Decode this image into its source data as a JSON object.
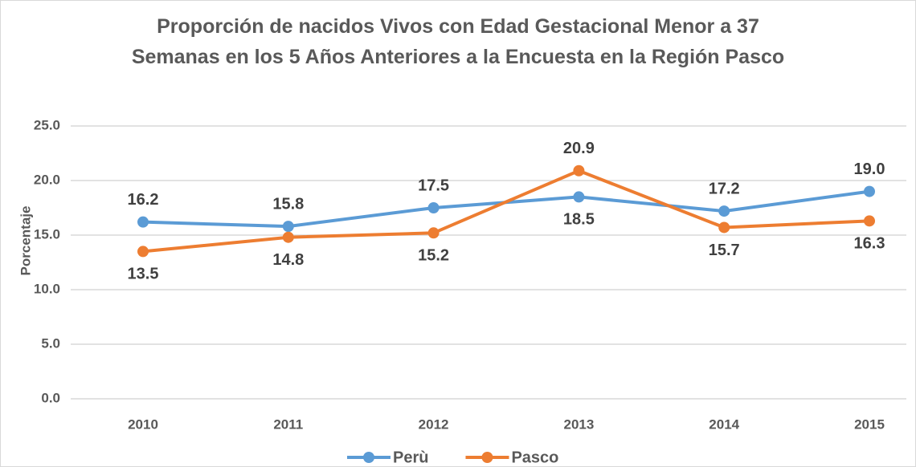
{
  "chart_data": {
    "type": "line",
    "title": "Proporción de nacidos Vivos con Edad Gestacional Menor a 37\nSemanas en los 5 Años Anteriores a la Encuesta en la Región Pasco",
    "y_label": "Porcentaje",
    "categories": [
      "2010",
      "2011",
      "2012",
      "2013",
      "2014",
      "2015"
    ],
    "series": [
      {
        "name": "Perù",
        "color": "#5b9bd5",
        "values": [
          16.2,
          15.8,
          17.5,
          18.5,
          17.2,
          19.0
        ],
        "value_labels": [
          "16.2",
          "15.8",
          "17.5",
          "18.5",
          "17.2",
          "19.0"
        ]
      },
      {
        "name": "Pasco",
        "color": "#ed7d31",
        "values": [
          13.5,
          14.8,
          15.2,
          20.9,
          15.7,
          16.3
        ],
        "value_labels": [
          "13.5",
          "14.8",
          "15.2",
          "20.9",
          "15.7",
          "16.3"
        ]
      }
    ],
    "ylim": [
      0,
      25
    ],
    "yticks": [
      {
        "value": 0,
        "label": "0.0"
      },
      {
        "value": 5,
        "label": "5.0"
      },
      {
        "value": 10,
        "label": "10.0"
      },
      {
        "value": 15,
        "label": "15.0"
      },
      {
        "value": 20,
        "label": "20.0"
      },
      {
        "value": 25,
        "label": "25.0"
      }
    ],
    "grid": true,
    "legend": "bottom"
  }
}
